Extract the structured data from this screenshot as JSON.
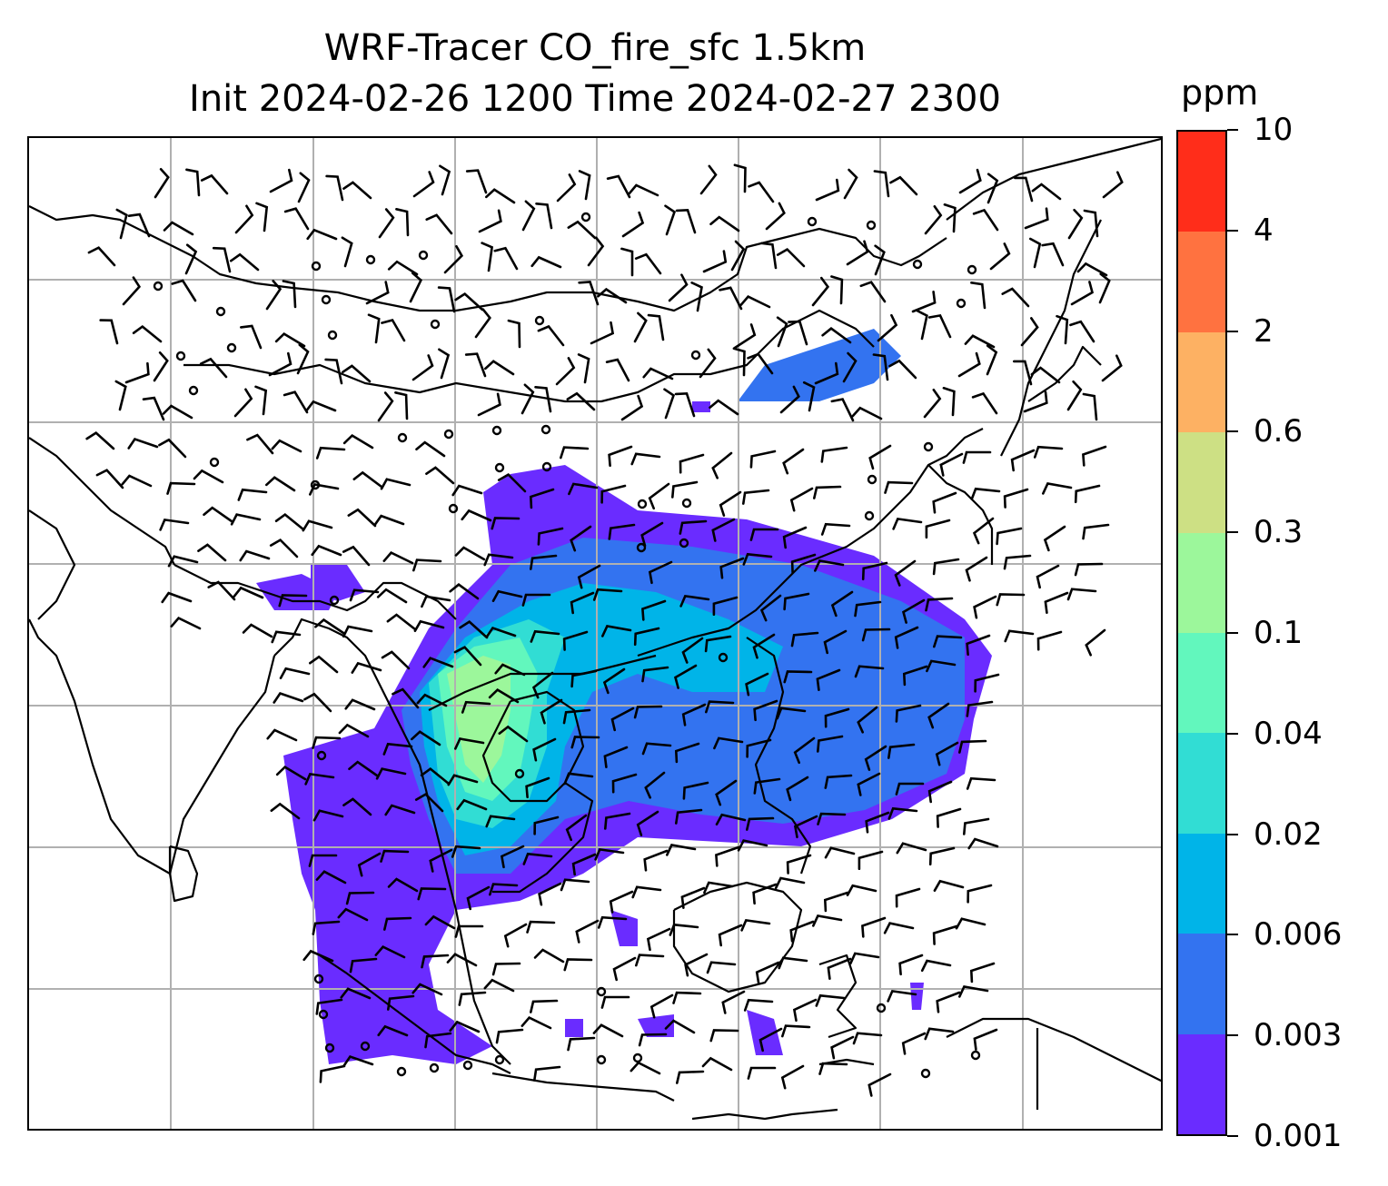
{
  "title": {
    "line1": "WRF-Tracer CO_fire_sfc 1.5km",
    "line2": "Init 2024-02-26 1200 Time 2024-02-27 2300"
  },
  "colorbar": {
    "unit": "ppm",
    "levels": [
      "0.001",
      "0.003",
      "0.006",
      "0.02",
      "0.04",
      "0.1",
      "0.3",
      "0.6",
      "2",
      "4",
      "10"
    ],
    "colors": [
      "#6a2cff",
      "#3373f0",
      "#00b4e8",
      "#31ddd4",
      "#62f7bd",
      "#9cf79b",
      "#cde084",
      "#fdb163",
      "#ff7240",
      "#ff2d1a"
    ]
  },
  "map": {
    "field": "CO_fire_sfc",
    "gridlines": true,
    "coastline_color": "#000000",
    "wind_barbs": true
  }
}
